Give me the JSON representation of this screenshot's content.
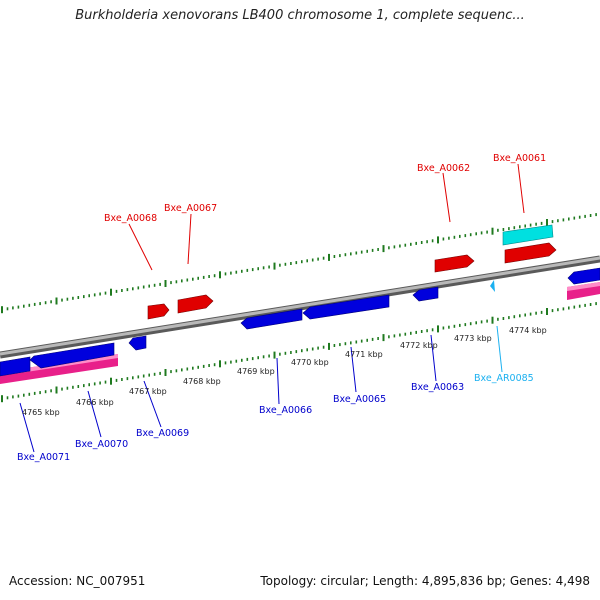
{
  "header": {
    "title": "Burkholderia xenovorans LB400 chromosome 1, complete sequenc..."
  },
  "footer": {
    "accession": "Accession: NC_007951",
    "summary": "Topology: circular; Length: 4,895,836 bp; Genes: 4,498"
  },
  "colors": {
    "forward_gene": "#e00000",
    "reverse_gene": "#0000dd",
    "rna_forward": "#00e0e0",
    "rna_reverse": "#1ab0f0",
    "cds_band": "#e8208a",
    "backbone": "#8c8c8c",
    "tick": "#1f7a1f"
  },
  "axis": {
    "labels": [
      "4765 kbp",
      "4766 kbp",
      "4767 kbp",
      "4768 kbp",
      "4769 kbp",
      "4770 kbp",
      "4771 kbp",
      "4772 kbp",
      "4773 kbp",
      "4774 kbp"
    ]
  },
  "genes": [
    {
      "id": "Bxe_A0071",
      "strand": "reverse"
    },
    {
      "id": "Bxe_A0070",
      "strand": "reverse"
    },
    {
      "id": "Bxe_A0069",
      "strand": "reverse"
    },
    {
      "id": "Bxe_A0068",
      "strand": "forward"
    },
    {
      "id": "Bxe_A0067",
      "strand": "forward"
    },
    {
      "id": "Bxe_A0066",
      "strand": "reverse"
    },
    {
      "id": "Bxe_A0065",
      "strand": "reverse"
    },
    {
      "id": "Bxe_A0063",
      "strand": "reverse"
    },
    {
      "id": "Bxe_A0062",
      "strand": "forward"
    },
    {
      "id": "Bxe_A0061",
      "strand": "forward"
    },
    {
      "id": "Bxe_AR0085",
      "strand": "rna"
    }
  ]
}
